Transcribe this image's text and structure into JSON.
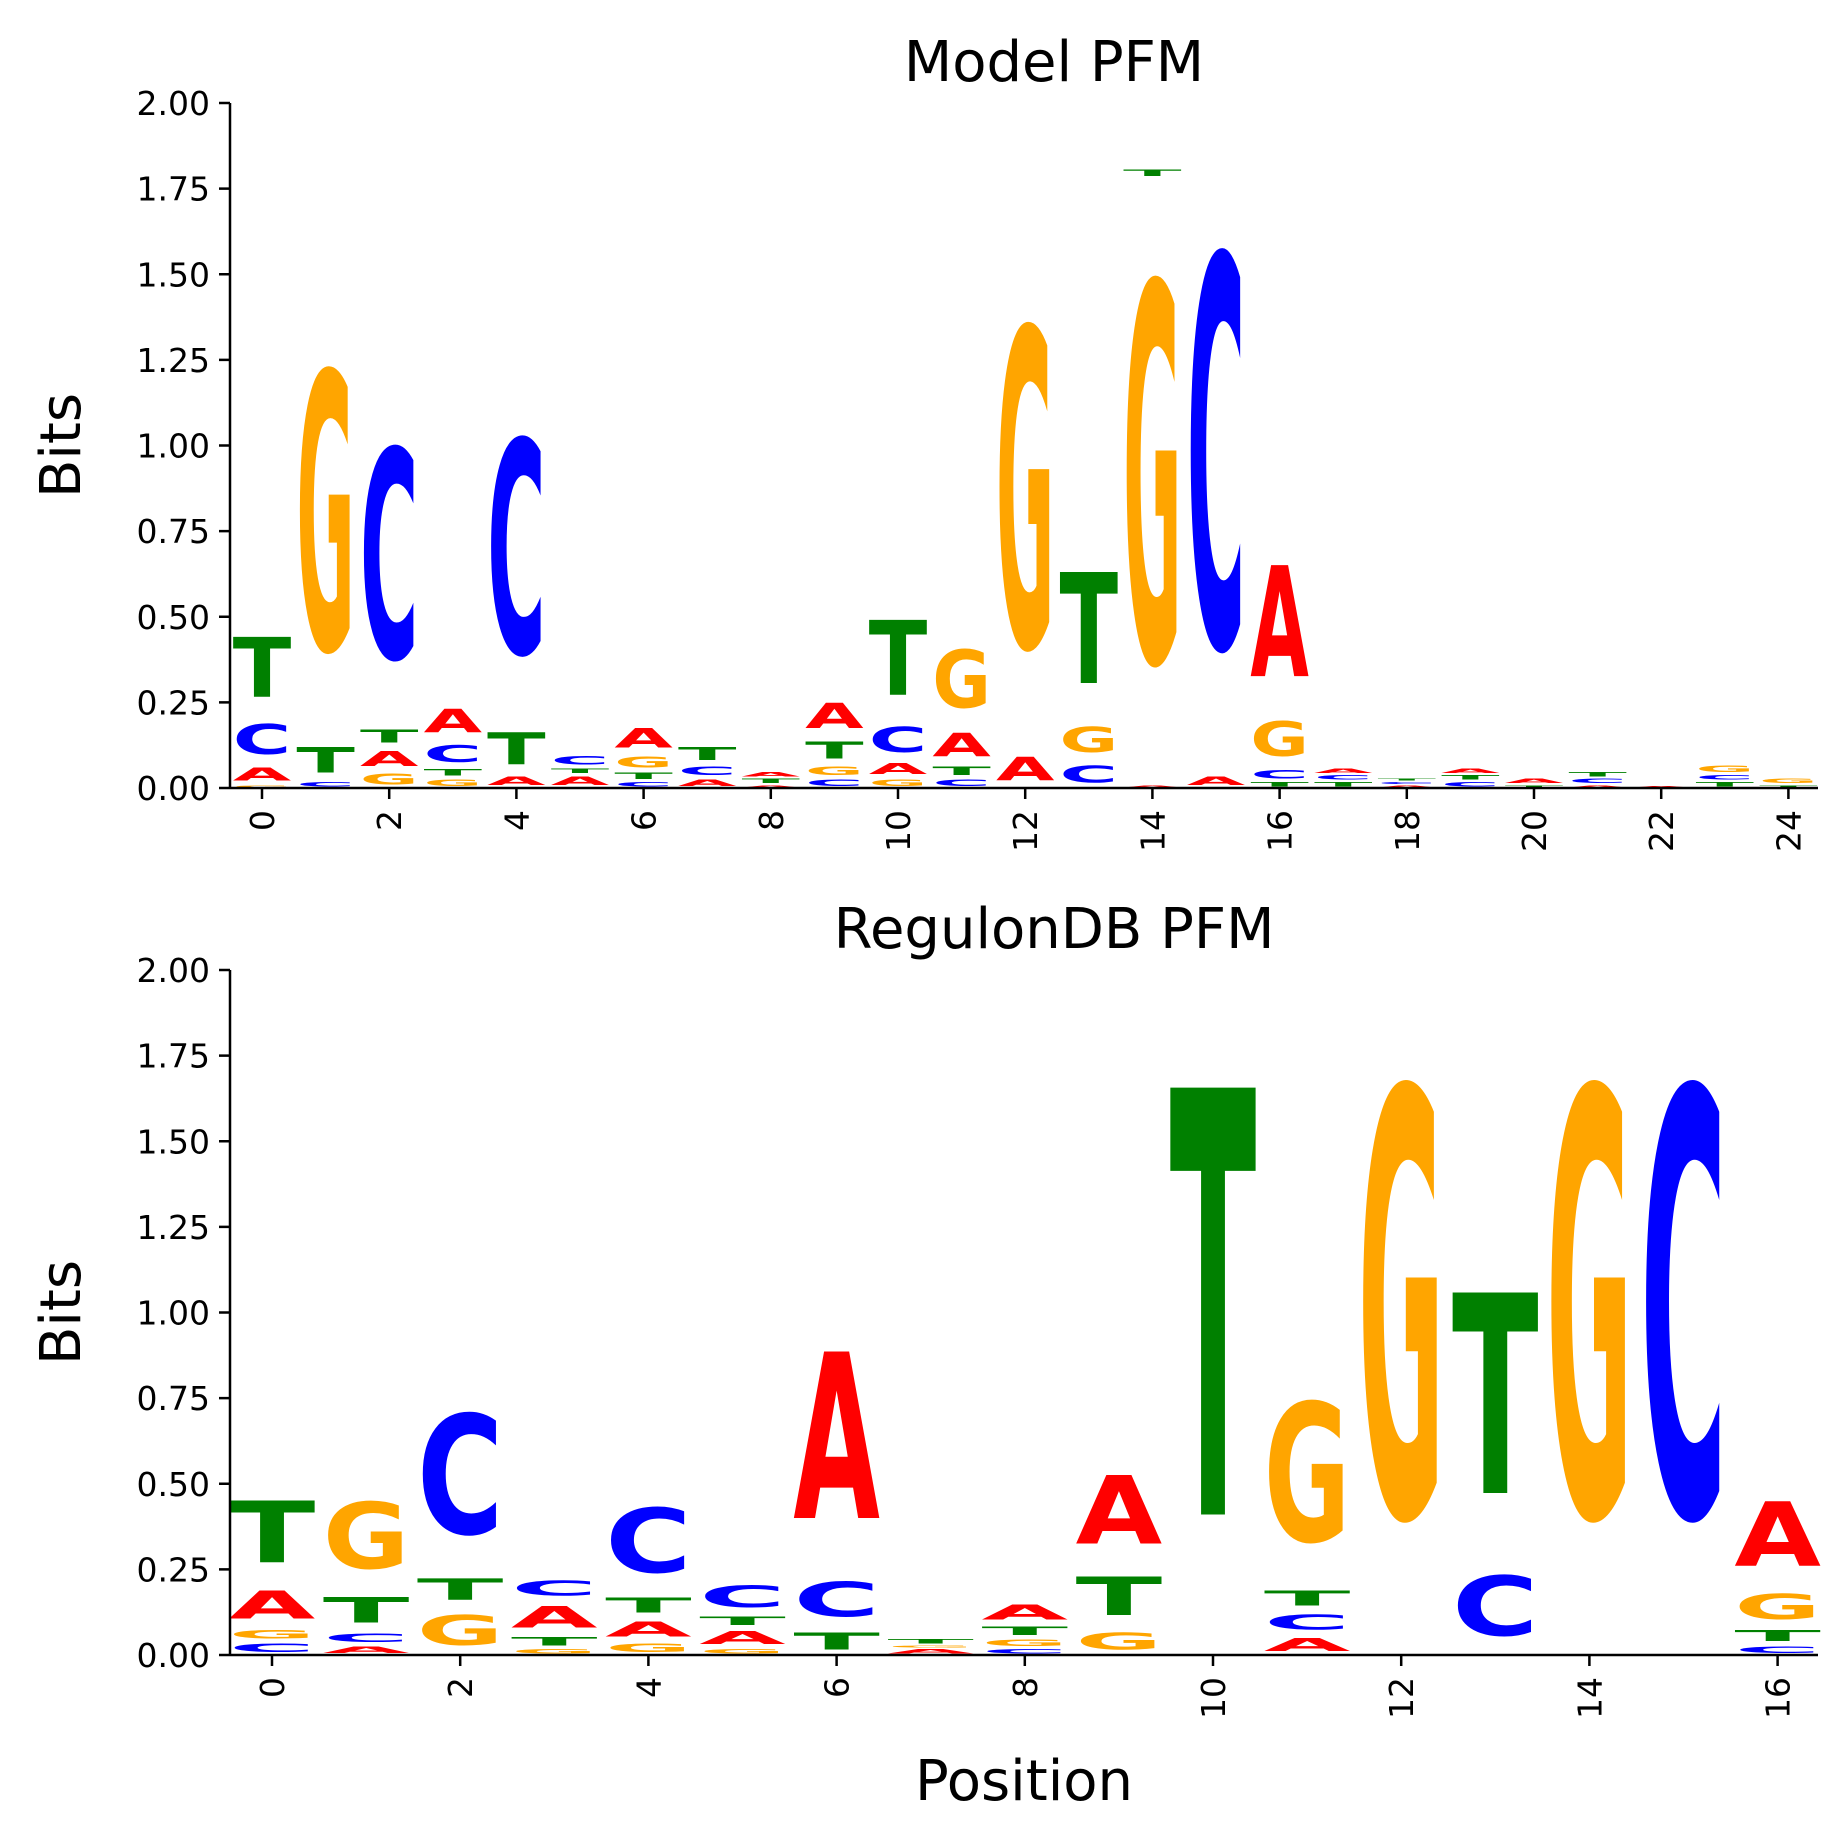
{
  "colors": {
    "A": "#ff0000",
    "C": "#0000ff",
    "G": "#ffa500",
    "T": "#008000"
  },
  "chart_data": [
    {
      "type": "sequence_logo",
      "title": "Model PFM",
      "xlabel": "",
      "ylabel": "Bits",
      "ylim": [
        0,
        2
      ],
      "yticks": [
        "0.00",
        "0.25",
        "0.50",
        "0.75",
        "1.00",
        "1.25",
        "1.50",
        "1.75",
        "2.00"
      ],
      "xticks": [
        "0",
        "2",
        "4",
        "6",
        "8",
        "10",
        "12",
        "14",
        "16",
        "18",
        "20",
        "22",
        "24"
      ],
      "positions": [
        [
          [
            "G",
            0.01
          ],
          [
            "A",
            0.06
          ],
          [
            "C",
            0.14
          ],
          [
            "T",
            0.28
          ]
        ],
        [
          [
            "C",
            0.02
          ],
          [
            "T",
            0.12
          ],
          [
            "G",
            1.3
          ]
        ],
        [
          [
            "G",
            0.05
          ],
          [
            "A",
            0.07
          ],
          [
            "T",
            0.06
          ],
          [
            "C",
            0.98
          ]
        ],
        [
          [
            "G",
            0.03
          ],
          [
            "T",
            0.03
          ],
          [
            "C",
            0.08
          ],
          [
            "A",
            0.11
          ]
        ],
        [
          [
            "A",
            0.04
          ],
          [
            "T",
            0.15
          ],
          [
            "C",
            1.0
          ]
        ],
        [
          [
            "A",
            0.04
          ],
          [
            "T",
            0.02
          ],
          [
            "C",
            0.04
          ]
        ],
        [
          [
            "C",
            0.02
          ],
          [
            "T",
            0.03
          ],
          [
            "G",
            0.05
          ],
          [
            "A",
            0.09
          ]
        ],
        [
          [
            "A",
            0.03
          ],
          [
            "C",
            0.04
          ],
          [
            "T",
            0.06
          ]
        ],
        [
          [
            "A",
            0.01
          ],
          [
            "T",
            0.02
          ],
          [
            "A",
            0.02
          ]
        ],
        [
          [
            "C",
            0.03
          ],
          [
            "G",
            0.04
          ],
          [
            "T",
            0.08
          ],
          [
            "A",
            0.12
          ]
        ],
        [
          [
            "G",
            0.03
          ],
          [
            "A",
            0.05
          ],
          [
            "C",
            0.12
          ],
          [
            "T",
            0.35
          ]
        ],
        [
          [
            "C",
            0.03
          ],
          [
            "T",
            0.04
          ],
          [
            "A",
            0.11
          ],
          [
            "G",
            0.27
          ]
        ],
        [
          [
            "A",
            0.11
          ],
          [
            "G",
            1.49
          ]
        ],
        [
          [
            "C",
            0.08
          ],
          [
            "G",
            0.12
          ],
          [
            "T",
            0.52
          ]
        ],
        [
          [
            "A",
            0.01
          ],
          [
            "G",
            1.77
          ],
          [
            "T",
            0.03
          ]
        ],
        [
          [
            "A",
            0.04
          ],
          [
            "C",
            1.83
          ]
        ],
        [
          [
            "T",
            0.02
          ],
          [
            "C",
            0.04
          ],
          [
            "G",
            0.16
          ],
          [
            "A",
            0.52
          ]
        ],
        [
          [
            "T",
            0.02
          ],
          [
            "C",
            0.02
          ],
          [
            "A",
            0.02
          ]
        ],
        [
          [
            "A",
            0.01
          ],
          [
            "C",
            0.01
          ],
          [
            "T",
            0.01
          ]
        ],
        [
          [
            "C",
            0.02
          ],
          [
            "T",
            0.02
          ],
          [
            "A",
            0.02
          ]
        ],
        [
          [
            "T",
            0.01
          ],
          [
            "A",
            0.02
          ]
        ],
        [
          [
            "A",
            0.01
          ],
          [
            "C",
            0.02
          ],
          [
            "T",
            0.02
          ]
        ],
        [
          [
            "A",
            0.005
          ]
        ],
        [
          [
            "T",
            0.02
          ],
          [
            "C",
            0.02
          ],
          [
            "G",
            0.03
          ]
        ],
        [
          [
            "T",
            0.01
          ],
          [
            "G",
            0.02
          ]
        ]
      ]
    },
    {
      "type": "sequence_logo",
      "title": "RegulonDB PFM",
      "xlabel": "Position",
      "ylabel": "Bits",
      "ylim": [
        0,
        2
      ],
      "yticks": [
        "0.00",
        "0.25",
        "0.50",
        "0.75",
        "1.00",
        "1.25",
        "1.50",
        "1.75",
        "2.00"
      ],
      "xticks": [
        "0",
        "2",
        "4",
        "6",
        "8",
        "10",
        "12",
        "14",
        "16"
      ],
      "positions": [
        [
          [
            "C",
            0.04
          ],
          [
            "G",
            0.04
          ],
          [
            "A",
            0.13
          ],
          [
            "T",
            0.29
          ]
        ],
        [
          [
            "A",
            0.03
          ],
          [
            "C",
            0.04
          ],
          [
            "T",
            0.12
          ],
          [
            "G",
            0.31
          ]
        ],
        [
          [
            "G",
            0.14
          ],
          [
            "T",
            0.1
          ],
          [
            "C",
            0.56
          ]
        ],
        [
          [
            "G",
            0.02
          ],
          [
            "T",
            0.04
          ],
          [
            "A",
            0.1
          ],
          [
            "C",
            0.07
          ]
        ],
        [
          [
            "G",
            0.04
          ],
          [
            "A",
            0.07
          ],
          [
            "T",
            0.07
          ],
          [
            "C",
            0.3
          ]
        ],
        [
          [
            "G",
            0.02
          ],
          [
            "A",
            0.06
          ],
          [
            "T",
            0.04
          ],
          [
            "C",
            0.1
          ]
        ],
        [
          [
            "T",
            0.08
          ],
          [
            "C",
            0.16
          ],
          [
            "A",
            0.78
          ]
        ],
        [
          [
            "A",
            0.02
          ],
          [
            "G",
            0.01
          ],
          [
            "T",
            0.02
          ]
        ],
        [
          [
            "C",
            0.02
          ],
          [
            "G",
            0.03
          ],
          [
            "T",
            0.04
          ],
          [
            "A",
            0.07
          ]
        ],
        [
          [
            "G",
            0.08
          ],
          [
            "T",
            0.18
          ],
          [
            "A",
            0.32
          ]
        ],
        [
          [
            "T",
            2.0
          ]
        ],
        [
          [
            "A",
            0.06
          ],
          [
            "C",
            0.07
          ],
          [
            "T",
            0.07
          ],
          [
            "G",
            0.65
          ]
        ],
        [
          [
            "G",
            2.0
          ]
        ],
        [
          [
            "C",
            0.28
          ],
          [
            "T",
            0.94
          ]
        ],
        [
          [
            "G",
            2.0
          ]
        ],
        [
          [
            "C",
            2.0
          ]
        ],
        [
          [
            "C",
            0.03
          ],
          [
            "T",
            0.05
          ],
          [
            "G",
            0.12
          ],
          [
            "A",
            0.3
          ]
        ]
      ]
    }
  ]
}
